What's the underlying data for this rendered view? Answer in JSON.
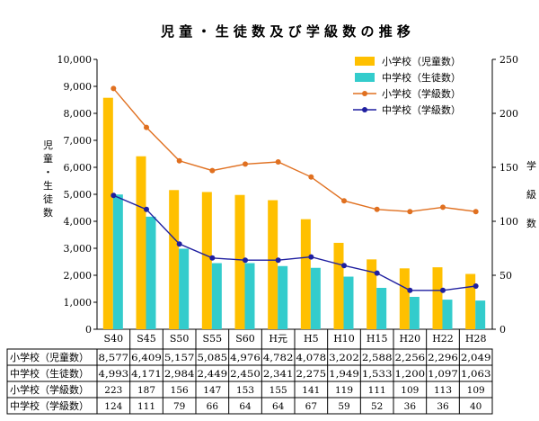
{
  "chart_data": {
    "type": "bar",
    "title": "児 童 ・ 生 徒 数 及 び 学 級 数 の 推 移",
    "ylabel_left": "児童・生徒数",
    "ylabel_right": "学級数",
    "categories": [
      "S40",
      "S45",
      "S50",
      "S55",
      "S60",
      "H元",
      "H5",
      "H10",
      "H15",
      "H20",
      "H22",
      "H28"
    ],
    "y_left_ticks": [
      "10,000",
      "9,000",
      "8,000",
      "7,000",
      "6,000",
      "5,000",
      "4,000",
      "3,000",
      "2,000",
      "1,000",
      "0"
    ],
    "y_right_ticks": [
      "250",
      "200",
      "150",
      "100",
      "50",
      "0"
    ],
    "ylim_left": [
      0,
      10000
    ],
    "ylim_right": [
      0,
      250
    ],
    "grid": false,
    "legend_position": "top-right",
    "series": [
      {
        "name": "小学校（児童数）",
        "type": "bar",
        "axis": "left",
        "color": "#FFC000",
        "values": [
          8577,
          6409,
          5157,
          5085,
          4976,
          4782,
          4078,
          3202,
          2588,
          2256,
          2296,
          2049
        ],
        "labels": [
          "8,577",
          "6,409",
          "5,157",
          "5,085",
          "4,976",
          "4,782",
          "4,078",
          "3,202",
          "2,588",
          "2,256",
          "2,296",
          "2,049"
        ]
      },
      {
        "name": "中学校（生徒数）",
        "type": "bar",
        "axis": "left",
        "color": "#33CCCC",
        "values": [
          4993,
          4171,
          2984,
          2449,
          2450,
          2341,
          2275,
          1949,
          1533,
          1200,
          1097,
          1063
        ],
        "labels": [
          "4,993",
          "4,171",
          "2,984",
          "2,449",
          "2,450",
          "2,341",
          "2,275",
          "1,949",
          "1,533",
          "1,200",
          "1,097",
          "1,063"
        ]
      },
      {
        "name": "小学校（学級数）",
        "type": "line",
        "axis": "right",
        "color": "#E07020",
        "values": [
          223,
          187,
          156,
          147,
          153,
          155,
          141,
          119,
          111,
          109,
          113,
          109
        ],
        "labels": [
          "223",
          "187",
          "156",
          "147",
          "153",
          "155",
          "141",
          "119",
          "111",
          "109",
          "113",
          "109"
        ]
      },
      {
        "name": "中学校（学級数）",
        "type": "line",
        "axis": "right",
        "color": "#1F1FA0",
        "values": [
          124,
          111,
          79,
          66,
          64,
          64,
          67,
          59,
          52,
          36,
          36,
          40
        ],
        "labels": [
          "124",
          "111",
          "79",
          "66",
          "64",
          "64",
          "67",
          "59",
          "52",
          "36",
          "36",
          "40"
        ]
      }
    ]
  }
}
